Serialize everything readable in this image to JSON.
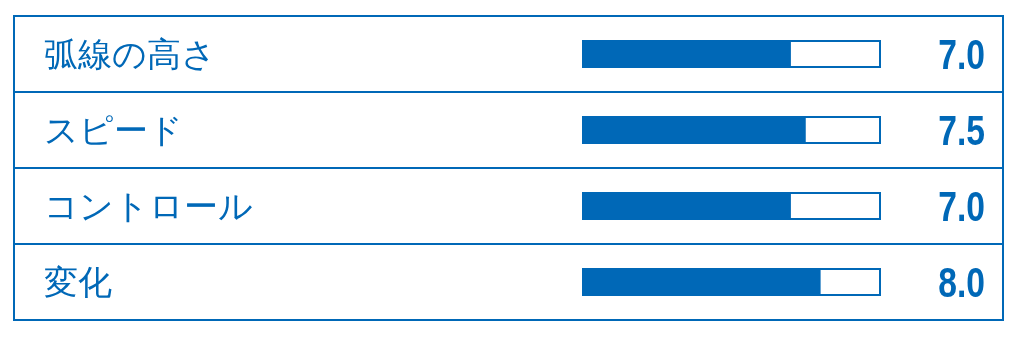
{
  "chart_data": {
    "type": "bar",
    "orientation": "horizontal",
    "categories": [
      "弧線の高さ",
      "スピード",
      "コントロール",
      "変化"
    ],
    "values": [
      7.0,
      7.5,
      7.0,
      8.0
    ],
    "value_labels": [
      "7.0",
      "7.5",
      "7.0",
      "8.0"
    ],
    "color": "#0068b7",
    "xlim": [
      0,
      10
    ]
  }
}
